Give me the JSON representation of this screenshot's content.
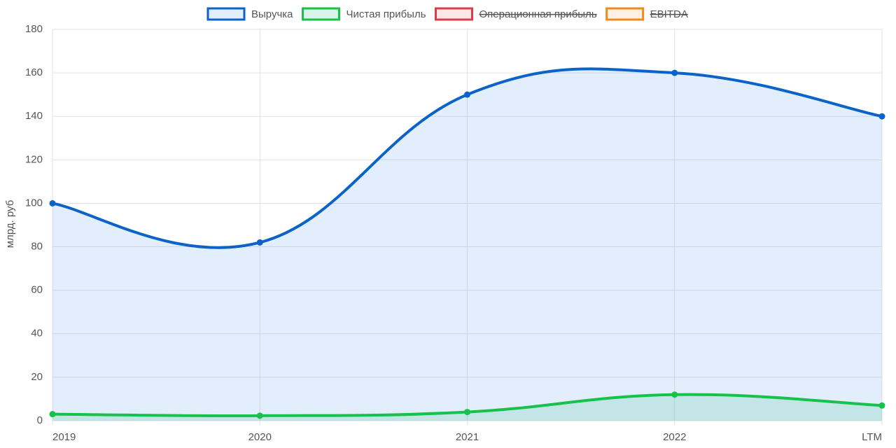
{
  "chart_data": {
    "type": "line",
    "y_label": "млрд. руб",
    "categories": [
      "2019",
      "2020",
      "2021",
      "2022",
      "LTM"
    ],
    "series": [
      {
        "name": "Выручка",
        "color": "#0b63c9",
        "fill": "rgba(100,160,240,0.18)",
        "hidden": false,
        "values": [
          100,
          82,
          150,
          160,
          140
        ]
      },
      {
        "name": "Чистая прибыль",
        "color": "#16c24a",
        "fill": "rgba(80,200,160,0.22)",
        "hidden": false,
        "values": [
          3,
          2.3,
          4,
          12,
          7
        ]
      },
      {
        "name": "Операционная прибыль",
        "color": "#e23a48",
        "fill": "rgba(230,60,70,0.12)",
        "hidden": true,
        "values": [
          null,
          null,
          null,
          null,
          null
        ]
      },
      {
        "name": "EBITDA",
        "color": "#f08a1c",
        "fill": "rgba(240,140,30,0.12)",
        "hidden": true,
        "values": [
          null,
          null,
          null,
          null,
          null
        ]
      }
    ],
    "ylim": [
      0,
      180
    ],
    "yticks": [
      0,
      20,
      40,
      60,
      80,
      100,
      120,
      140,
      160,
      180
    ],
    "grid": true,
    "legend": "top",
    "smooth": true
  }
}
